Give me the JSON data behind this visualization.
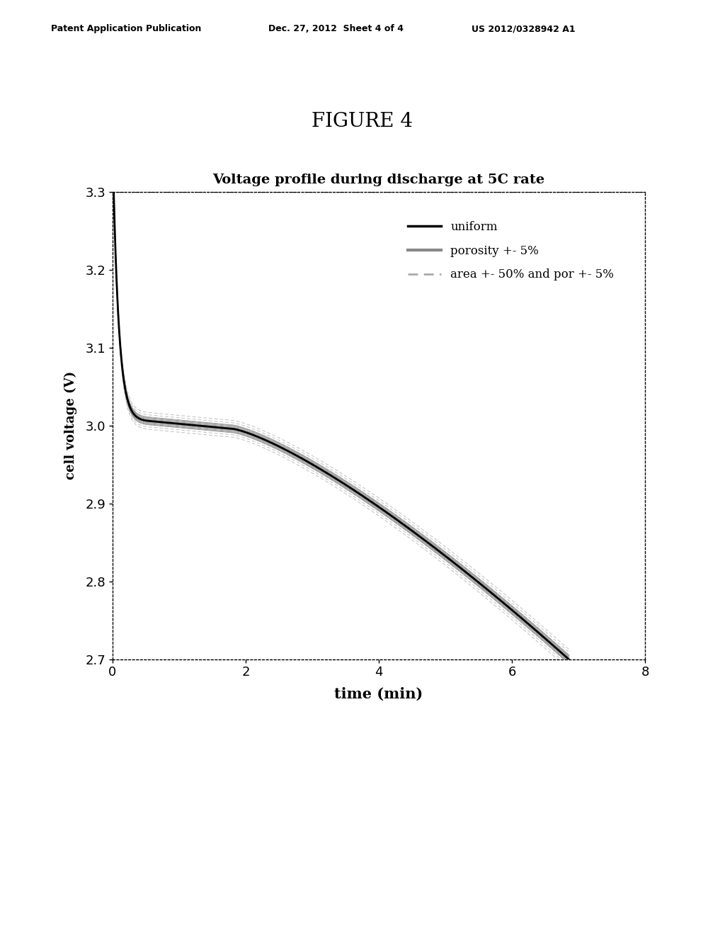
{
  "figure_title": "FIGURE 4",
  "chart_title": "Voltage profile during discharge at 5C rate",
  "xlabel": "time (min)",
  "ylabel": "cell voltage (V)",
  "xlim": [
    0,
    8
  ],
  "ylim": [
    2.7,
    3.3
  ],
  "xticks": [
    0,
    2,
    4,
    6,
    8
  ],
  "yticks": [
    2.7,
    2.8,
    2.9,
    3.0,
    3.1,
    3.2,
    3.3
  ],
  "header_left": "Patent Application Publication",
  "header_center": "Dec. 27, 2012  Sheet 4 of 4",
  "header_right": "US 2012/0328942 A1",
  "legend_entries": [
    "uniform",
    "porosity +- 5%",
    "area +- 50% and por +- 5%"
  ],
  "bg_color": "#ffffff"
}
